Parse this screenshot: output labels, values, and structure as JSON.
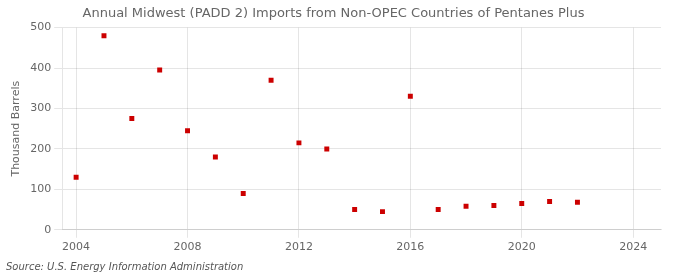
{
  "chart_data": {
    "type": "scatter",
    "title": "Annual Midwest (PADD 2) Imports from Non-OPEC Countries of Pentanes Plus",
    "y_label": "Thousand Barrels",
    "source": "Source: U.S. Energy Information Administration",
    "x": [
      2004,
      2005,
      2006,
      2007,
      2008,
      2009,
      2010,
      2011,
      2012,
      2013,
      2014,
      2015,
      2016,
      2017,
      2018,
      2019,
      2020,
      2021,
      2022
    ],
    "values": [
      130,
      480,
      275,
      395,
      245,
      180,
      90,
      370,
      215,
      200,
      50,
      45,
      330,
      50,
      58,
      60,
      65,
      70,
      68
    ],
    "color": "#cc0000",
    "marker": "square",
    "xlim": [
      2003.5,
      2025
    ],
    "xticks": [
      2004,
      2008,
      2012,
      2016,
      2020,
      2024
    ],
    "ylim": [
      0,
      500
    ],
    "yticks": [
      0,
      100,
      200,
      300,
      400,
      500
    ],
    "grid": true
  }
}
